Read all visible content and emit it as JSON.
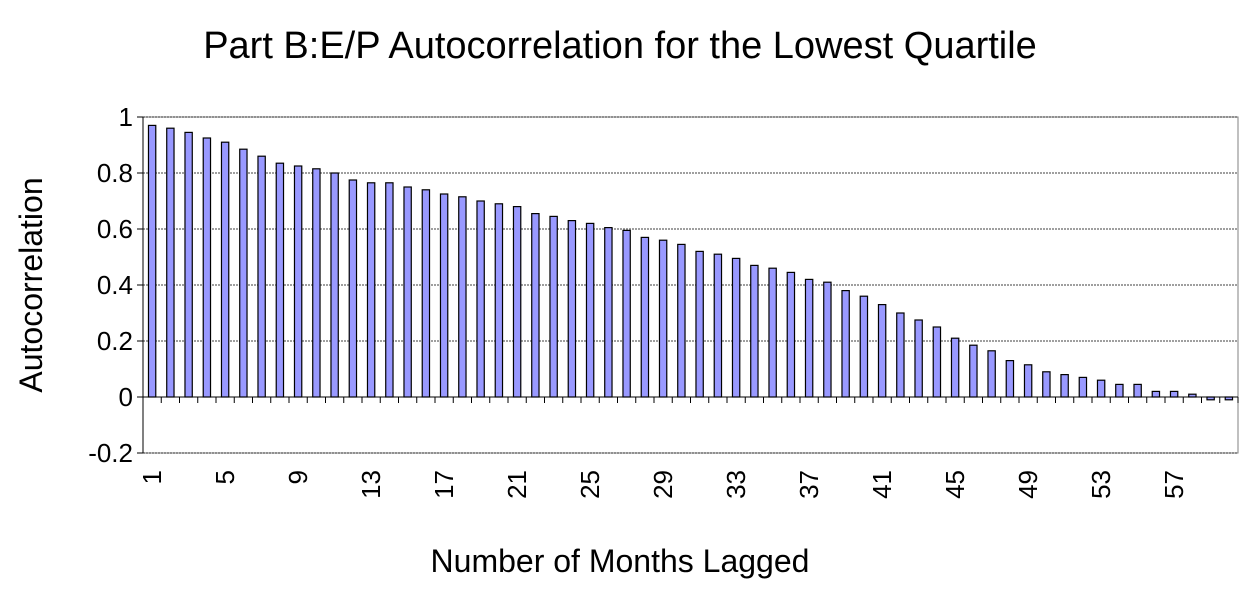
{
  "chart_data": {
    "type": "bar",
    "title": "Part B:E/P Autocorrelation for the Lowest Quartile",
    "x_label": "Number of Months Lagged",
    "y_label": "Autocorrelation",
    "categories": [
      "1",
      null,
      null,
      null,
      "5",
      null,
      null,
      null,
      "9",
      null,
      null,
      null,
      "13",
      null,
      null,
      null,
      "17",
      null,
      null,
      null,
      "21",
      null,
      null,
      null,
      "25",
      null,
      null,
      null,
      "29",
      null,
      null,
      null,
      "33",
      null,
      null,
      null,
      "37",
      null,
      null,
      null,
      "41",
      null,
      null,
      null,
      "45",
      null,
      null,
      null,
      "49",
      null,
      null,
      null,
      "53",
      null,
      null,
      null,
      "57",
      null,
      null,
      null
    ],
    "values": [
      0.97,
      0.96,
      0.945,
      0.925,
      0.91,
      0.885,
      0.86,
      0.835,
      0.825,
      0.815,
      0.8,
      0.775,
      0.765,
      0.765,
      0.75,
      0.74,
      0.725,
      0.715,
      0.7,
      0.69,
      0.68,
      0.655,
      0.645,
      0.63,
      0.62,
      0.605,
      0.595,
      0.57,
      0.56,
      0.545,
      0.52,
      0.51,
      0.495,
      0.47,
      0.46,
      0.445,
      0.42,
      0.41,
      0.38,
      0.36,
      0.33,
      0.3,
      0.275,
      0.25,
      0.21,
      0.185,
      0.165,
      0.13,
      0.115,
      0.09,
      0.08,
      0.07,
      0.06,
      0.045,
      0.045,
      0.02,
      0.02,
      0.01,
      -0.01,
      -0.01
    ],
    "color": "#9999ff",
    "ylim": [
      -0.2,
      1
    ],
    "yticks": [
      1,
      0.8,
      0.6,
      0.4,
      0.2,
      0,
      -0.2
    ],
    "grid": true
  }
}
